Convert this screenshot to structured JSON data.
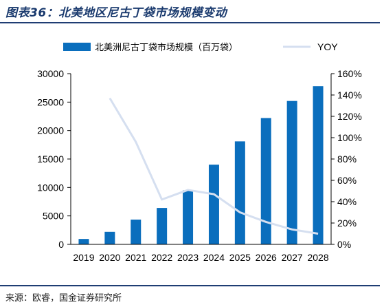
{
  "figure": {
    "title": "图表36：北美地区尼古丁袋市场规模变动",
    "source": "来源：欧睿，国金证券研究所"
  },
  "chart_data": {
    "type": "bar",
    "categories": [
      "2019",
      "2020",
      "2021",
      "2022",
      "2023",
      "2024",
      "2025",
      "2026",
      "2027",
      "2028"
    ],
    "series": [
      {
        "name": "北美洲尼古丁袋市场规模（百万袋）",
        "type": "bar",
        "axis": "left",
        "color": "#0a6ebd",
        "values": [
          950,
          2200,
          4350,
          6400,
          9500,
          14000,
          18100,
          22200,
          25200,
          27800
        ]
      },
      {
        "name": "YOY",
        "type": "line",
        "axis": "right",
        "color": "#d5dff0",
        "values": [
          null,
          1.37,
          0.96,
          0.42,
          0.51,
          0.47,
          0.3,
          0.21,
          0.14,
          0.1
        ]
      }
    ],
    "y_left": {
      "min": 0,
      "max": 30000,
      "ticks": [
        "0",
        "5000",
        "10000",
        "15000",
        "20000",
        "25000",
        "30000"
      ]
    },
    "y_right": {
      "min": 0,
      "max": 1.6,
      "ticks": [
        "0%",
        "20%",
        "40%",
        "60%",
        "80%",
        "100%",
        "120%",
        "140%",
        "160%"
      ]
    },
    "legend_position": "top",
    "grid": false
  }
}
